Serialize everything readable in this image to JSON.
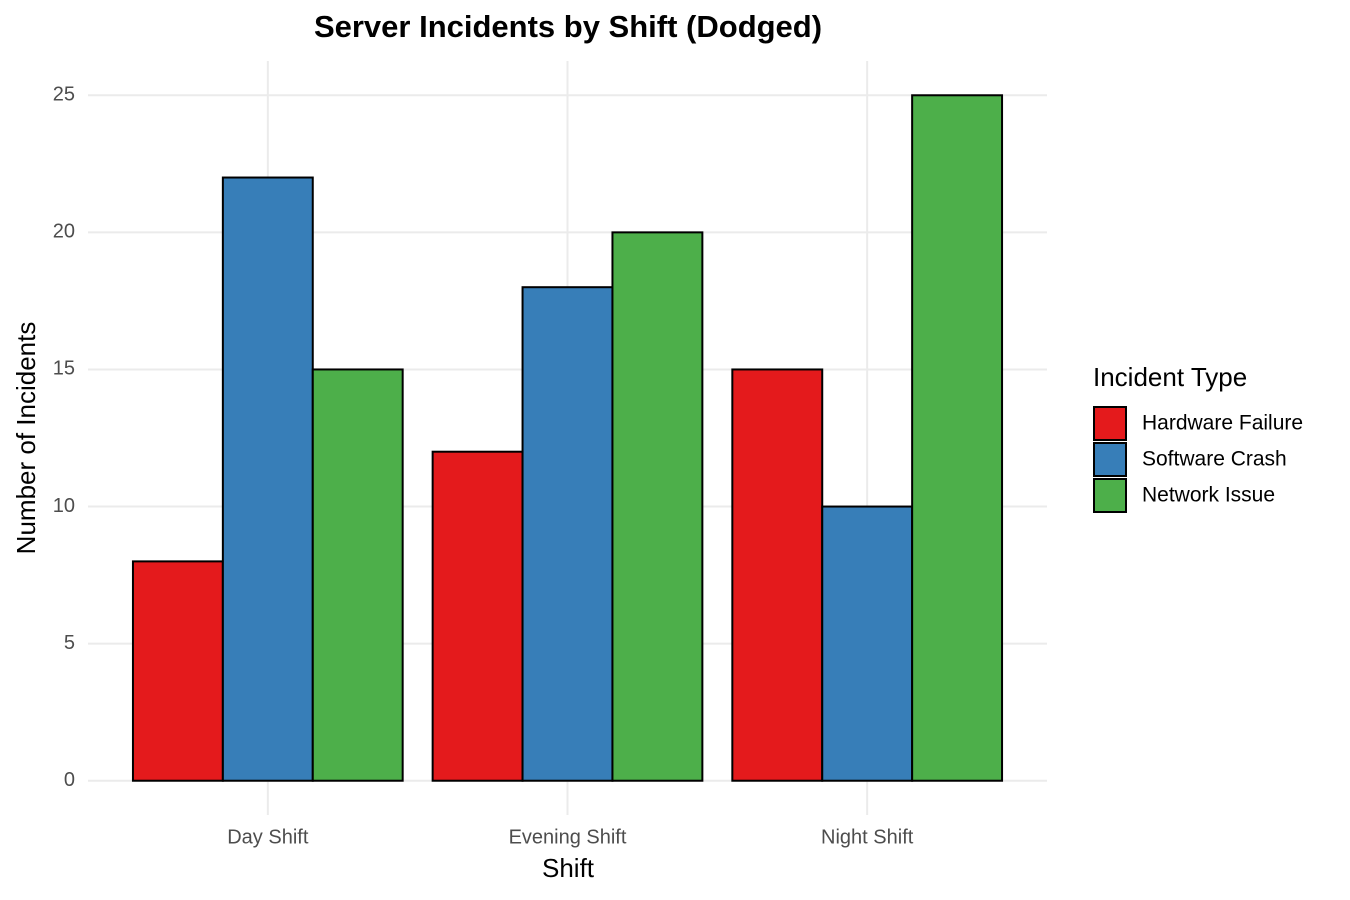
{
  "chart_data": {
    "type": "bar",
    "title": "Server Incidents by Shift (Dodged)",
    "x_label": "Shift",
    "y_label": "Number of Incidents",
    "categories": [
      "Day Shift",
      "Evening Shift",
      "Night Shift"
    ],
    "series": [
      {
        "name": "Hardware Failure",
        "color": "#e41a1c",
        "values": [
          8,
          12,
          15
        ]
      },
      {
        "name": "Software Crash",
        "color": "#377eb8",
        "values": [
          22,
          18,
          10
        ]
      },
      {
        "name": "Network Issue",
        "color": "#4daf4a",
        "values": [
          15,
          20,
          25
        ]
      }
    ],
    "legend_title": "Incident Type",
    "legend_position": "right",
    "ylim": [
      -1.25,
      26.25
    ],
    "yticks": [
      0,
      5,
      10,
      15,
      20,
      25
    ],
    "grid": true
  }
}
